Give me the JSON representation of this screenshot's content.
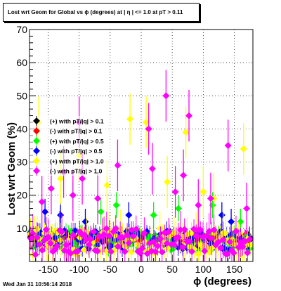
{
  "chart_data": {
    "type": "scatter",
    "title": "Lost wrt Geom for Global vs ϕ (degrees) at | η | <= 1.0 at pT > 0.11",
    "xlabel": "ϕ (degrees)",
    "ylabel": "Lost wrt Geom (%)",
    "xlim": [
      -180,
      180
    ],
    "ylim": [
      0,
      70
    ],
    "x_ticks": [
      -150,
      -100,
      -50,
      0,
      50,
      100,
      150
    ],
    "y_ticks": [
      10,
      20,
      30,
      40,
      50,
      60,
      70
    ],
    "grid": true,
    "legend_position": "top-left",
    "legend": [
      {
        "label": "(+) with pT/|q| > 0.1",
        "color": "#000000"
      },
      {
        "label": "(-) with pT/|q| > 0.1",
        "color": "#ff0000"
      },
      {
        "label": "(+) with pT/|q| > 0.5",
        "color": "#00ff00"
      },
      {
        "label": "(-) with pT/|q| > 0.5",
        "color": "#0000ff"
      },
      {
        "label": "(+) with pT/|q| > 1.0",
        "color": "#ffff00"
      },
      {
        "label": "(-) with pT/|q| > 1.0",
        "color": "#ff00ff"
      }
    ],
    "series": [
      {
        "name": "(+) with pT/|q| > 0.1",
        "color": "#000000",
        "base": 7,
        "spread": 1.2,
        "err": 1.5,
        "outliers": []
      },
      {
        "name": "(-) with pT/|q| > 0.1",
        "color": "#ff0000",
        "base": 7,
        "spread": 1.2,
        "err": 1.5,
        "outliers": []
      },
      {
        "name": "(+) with pT/|q| > 0.5",
        "color": "#00ff00",
        "base": 6.5,
        "spread": 3,
        "err": 3,
        "outliers": [
          [
            -110,
            20
          ],
          [
            -65,
            15
          ],
          [
            -40,
            17
          ],
          [
            20,
            14
          ],
          [
            60,
            16
          ],
          [
            115,
            17
          ],
          [
            160,
            12
          ]
        ]
      },
      {
        "name": "(-) with pT/|q| > 0.5",
        "color": "#0000ff",
        "base": 6.5,
        "spread": 3,
        "err": 3,
        "outliers": [
          [
            -155,
            15
          ],
          [
            -130,
            14
          ],
          [
            -90,
            12
          ],
          [
            -20,
            14
          ],
          [
            130,
            14
          ],
          [
            145,
            12
          ]
        ]
      },
      {
        "name": "(+) with pT/|q| > 1.0",
        "color": "#ffff00",
        "base": 6,
        "spread": 4,
        "err": 6,
        "outliers": [
          [
            -165,
            42
          ],
          [
            -130,
            25
          ],
          [
            -100,
            32
          ],
          [
            -55,
            23
          ],
          [
            -18,
            43
          ],
          [
            8,
            42
          ],
          [
            42,
            24
          ],
          [
            72,
            39
          ],
          [
            100,
            21
          ],
          [
            117,
            19
          ],
          [
            165,
            34
          ]
        ]
      },
      {
        "name": "(-) with pT/|q| > 1.0",
        "color": "#ff00ff",
        "base": 6,
        "spread": 4,
        "err": 6,
        "outliers": [
          [
            -160,
            18
          ],
          [
            -145,
            22
          ],
          [
            -125,
            27
          ],
          [
            -110,
            20
          ],
          [
            -100,
            42
          ],
          [
            -95,
            25
          ],
          [
            -70,
            19
          ],
          [
            -38,
            29
          ],
          [
            12,
            40
          ],
          [
            18,
            28
          ],
          [
            40,
            50
          ],
          [
            55,
            21
          ],
          [
            68,
            26
          ],
          [
            77,
            44
          ],
          [
            92,
            17
          ],
          [
            112,
            19
          ],
          [
            140,
            35
          ],
          [
            170,
            16
          ]
        ]
      }
    ]
  },
  "footer": {
    "timestamp": "Wed Jan 31 10:56:14 2018"
  }
}
